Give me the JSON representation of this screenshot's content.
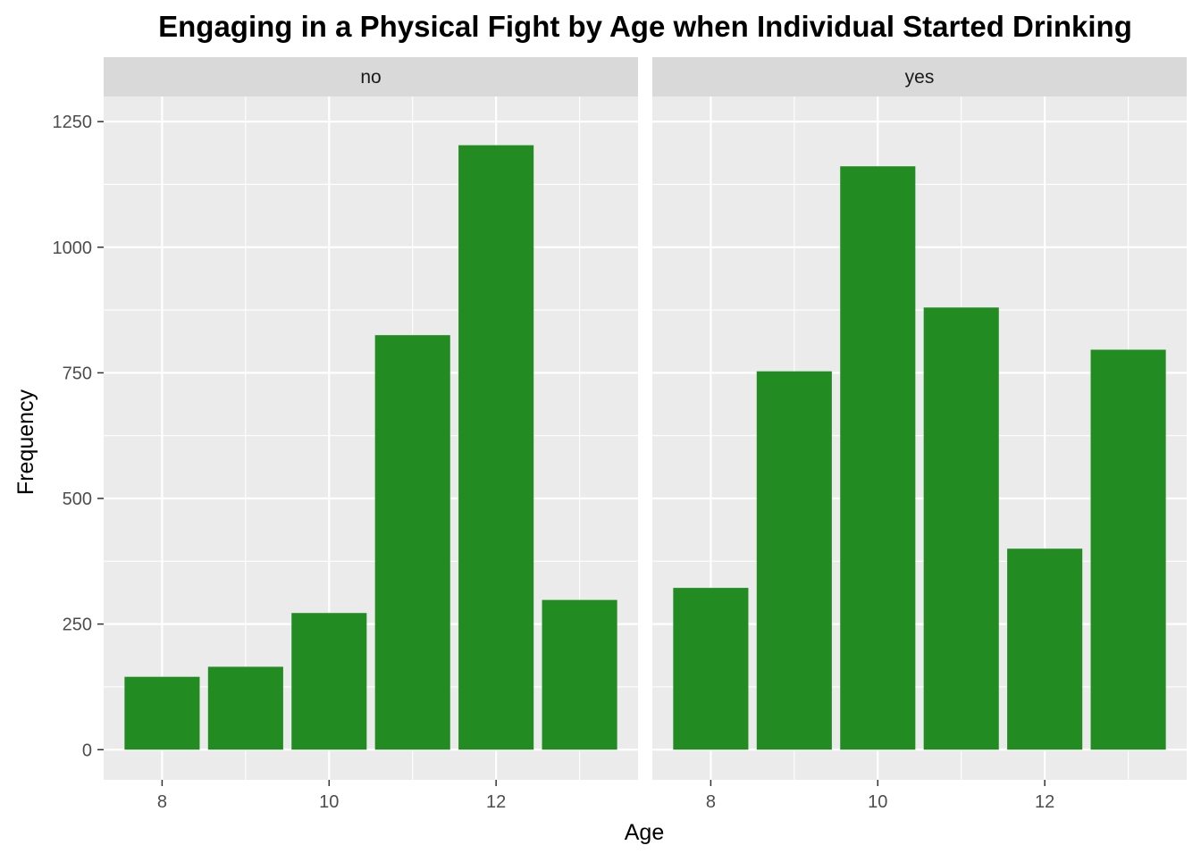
{
  "chart_data": {
    "type": "bar",
    "title": "Engaging in a Physical Fight by Age when Individual Started Drinking",
    "xlabel": "Age",
    "ylabel": "Frequency",
    "x": [
      8,
      9,
      10,
      11,
      12,
      13
    ],
    "x_ticks": [
      "8",
      "10",
      "12"
    ],
    "xlim": [
      7.3,
      13.7
    ],
    "y_ticks": [
      "0",
      "250",
      "500",
      "750",
      "1000",
      "1250"
    ],
    "ylim": [
      -60,
      1300
    ],
    "grid": true,
    "legend": "none",
    "bar_color": "#228B22",
    "panel_background": "#EBEBEB",
    "strip_background": "#D9D9D9",
    "facets": [
      {
        "label": "no",
        "values": [
          145,
          165,
          272,
          825,
          1203,
          298
        ]
      },
      {
        "label": "yes",
        "values": [
          322,
          753,
          1161,
          880,
          400,
          796
        ]
      }
    ]
  }
}
